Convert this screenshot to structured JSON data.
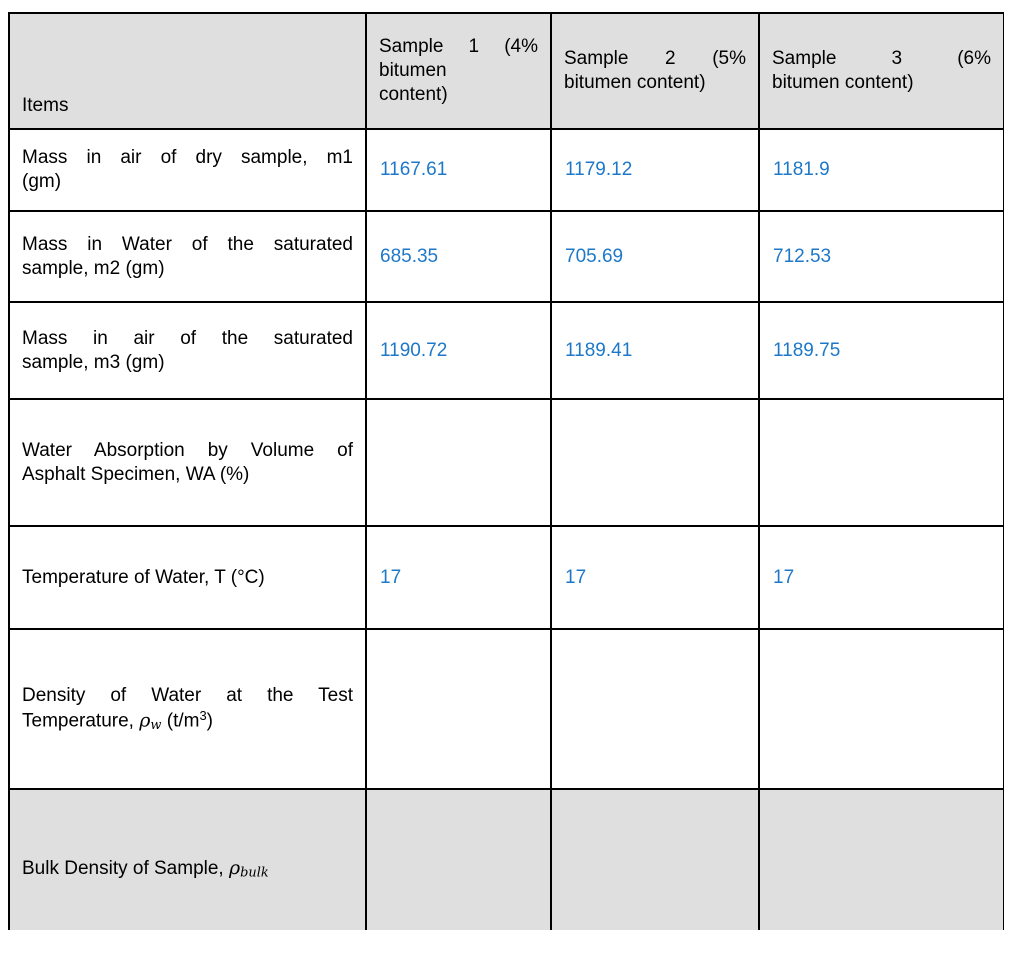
{
  "table": {
    "style": {
      "header_bg": "#dfdfdf",
      "highlight_row_bg": "#dfdfdf",
      "value_color": "#1e78c8",
      "border_color": "#000000"
    },
    "header": {
      "items_label": "Items",
      "sample_columns": [
        {
          "label": "Sample 1 (4% bitumen content)",
          "lines": [
            {
              "stretch": true,
              "segs": [
                {
                  "t": "Sample 1 (4%"
                }
              ]
            },
            {
              "stretch": false,
              "segs": [
                {
                  "t": "bitumen"
                }
              ]
            },
            {
              "stretch": false,
              "segs": [
                {
                  "t": "content)"
                }
              ]
            }
          ]
        },
        {
          "label": "Sample 2 (5% bitumen content)",
          "lines": [
            {
              "stretch": true,
              "segs": [
                {
                  "t": "Sample 2 (5%"
                }
              ]
            },
            {
              "stretch": false,
              "segs": [
                {
                  "t": "bitumen content)"
                }
              ]
            }
          ]
        },
        {
          "label": "Sample 3 (6% bitumen content)",
          "lines": [
            {
              "stretch": true,
              "segs": [
                {
                  "t": "Sample 3 (6%"
                }
              ]
            },
            {
              "stretch": false,
              "segs": [
                {
                  "t": "bitumen content)"
                }
              ]
            }
          ]
        }
      ]
    },
    "rows": [
      {
        "label": "Mass in air of dry sample, m1 (gm)",
        "label_lines": [
          {
            "stretch": true,
            "segs": [
              {
                "t": "Mass in air of dry sample, m1"
              }
            ]
          },
          {
            "stretch": false,
            "segs": [
              {
                "t": "(gm)"
              }
            ]
          }
        ],
        "values": [
          "1167.61",
          "1179.12",
          "1181.9"
        ],
        "highlight": false
      },
      {
        "label": "Mass in Water of the saturated sample, m2 (gm)",
        "label_lines": [
          {
            "stretch": true,
            "segs": [
              {
                "t": "Mass in Water of the saturated"
              }
            ]
          },
          {
            "stretch": false,
            "segs": [
              {
                "t": "sample, m2 (gm)"
              }
            ]
          }
        ],
        "values": [
          "685.35",
          "705.69",
          "712.53"
        ],
        "highlight": false
      },
      {
        "label": "Mass in air of the saturated sample, m3 (gm)",
        "label_lines": [
          {
            "stretch": true,
            "segs": [
              {
                "t": "Mass in air of the saturated"
              }
            ]
          },
          {
            "stretch": false,
            "segs": [
              {
                "t": "sample, m3 (gm)"
              }
            ]
          }
        ],
        "values": [
          "1190.72",
          "1189.41",
          "1189.75"
        ],
        "highlight": false
      },
      {
        "label": "Water Absorption by Volume of Asphalt Specimen, WA (%)",
        "label_lines": [
          {
            "stretch": true,
            "segs": [
              {
                "t": "Water Absorption by Volume of"
              }
            ]
          },
          {
            "stretch": false,
            "segs": [
              {
                "t": "Asphalt Specimen, WA (%)"
              }
            ]
          }
        ],
        "values": [
          "",
          "",
          ""
        ],
        "highlight": false
      },
      {
        "label": "Temperature of Water, T (°C)",
        "label_lines": [
          {
            "stretch": false,
            "segs": [
              {
                "t": "Temperature of Water, T (°C)"
              }
            ]
          }
        ],
        "values": [
          "17",
          "17",
          "17"
        ],
        "highlight": false
      },
      {
        "label": "Density of Water at the Test Temperature, ρw (t/m³)",
        "label_lines": [
          {
            "stretch": true,
            "segs": [
              {
                "t": "Density of Water at the Test"
              }
            ]
          },
          {
            "stretch": false,
            "segs": [
              {
                "t": "Temperature, "
              },
              {
                "t": "ρ",
                "s": "mi"
              },
              {
                "t": "w",
                "s": "msub"
              },
              {
                "t": " (t/m"
              },
              {
                "t": "3",
                "s": "sup"
              },
              {
                "t": ")"
              }
            ]
          }
        ],
        "values": [
          "",
          "",
          ""
        ],
        "highlight": false
      },
      {
        "label": "Bulk Density of Sample, ρbulk",
        "label_lines": [
          {
            "stretch": false,
            "segs": [
              {
                "t": "Bulk Density of Sample, "
              },
              {
                "t": "ρ",
                "s": "mi"
              },
              {
                "t": "bulk",
                "s": "msub"
              }
            ]
          }
        ],
        "values": [
          "",
          "",
          ""
        ],
        "highlight": true
      }
    ]
  }
}
